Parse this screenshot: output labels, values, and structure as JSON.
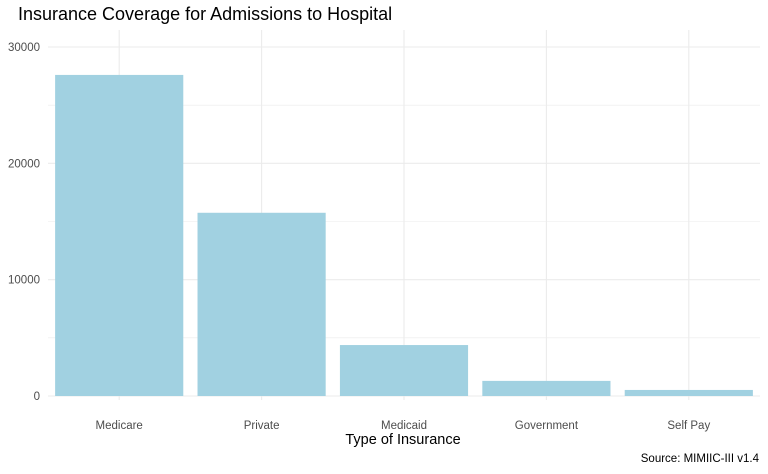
{
  "chart_data": {
    "type": "bar",
    "title": "Insurance Coverage for Admissions to Hospital",
    "xlabel": "Type of Insurance",
    "ylabel": "",
    "caption": "Source: MIMIIC-III v1.4",
    "categories": [
      "Medicare",
      "Private",
      "Medicaid",
      "Government",
      "Self Pay"
    ],
    "values": [
      27600,
      15750,
      4380,
      1300,
      520
    ],
    "ylim": [
      0,
      30000
    ],
    "yticks": [
      "0",
      "10000",
      "20000",
      "30000"
    ],
    "grid": true,
    "bar_color": "#a1d1e1",
    "grid_color": "#ebebeb"
  }
}
